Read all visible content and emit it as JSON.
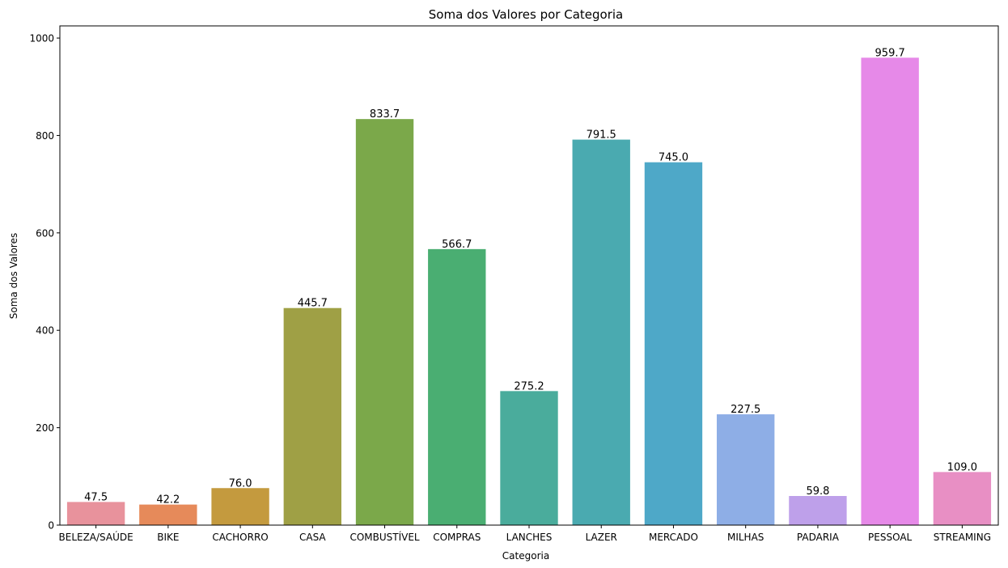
{
  "chart_data": {
    "type": "bar",
    "title": "Soma dos Valores por Categoria",
    "xlabel": "Categoria",
    "ylabel": "Soma dos Valores",
    "ylim": [
      0,
      1000
    ],
    "yticks": [
      0,
      200,
      400,
      600,
      800,
      1000
    ],
    "grid": false,
    "categories": [
      "BELEZA/SAÚDE",
      "BIKE",
      "CACHORRO",
      "CASA",
      "COMBUSTÍVEL",
      "COMPRAS",
      "LANCHES",
      "LAZER",
      "MERCADO",
      "MILHAS",
      "PADARIA",
      "PESSOAL",
      "STREAMING"
    ],
    "values": [
      47.5,
      42.2,
      76.0,
      445.7,
      833.7,
      566.7,
      275.2,
      791.5,
      745.0,
      227.5,
      59.8,
      959.7,
      109.0
    ],
    "data_labels": [
      "47.5",
      "42.2",
      "76.0",
      "445.7",
      "833.7",
      "566.7",
      "275.2",
      "791.5",
      "745.0",
      "227.5",
      "59.8",
      "959.7",
      "109.0"
    ],
    "colors": [
      "#e8929c",
      "#e68a5a",
      "#c49a3e",
      "#9fa045",
      "#7ba84a",
      "#4aae72",
      "#4aac9c",
      "#4aaab0",
      "#4ea8c8",
      "#8eaee6",
      "#bea0ea",
      "#e689e8",
      "#e88fc4"
    ]
  }
}
